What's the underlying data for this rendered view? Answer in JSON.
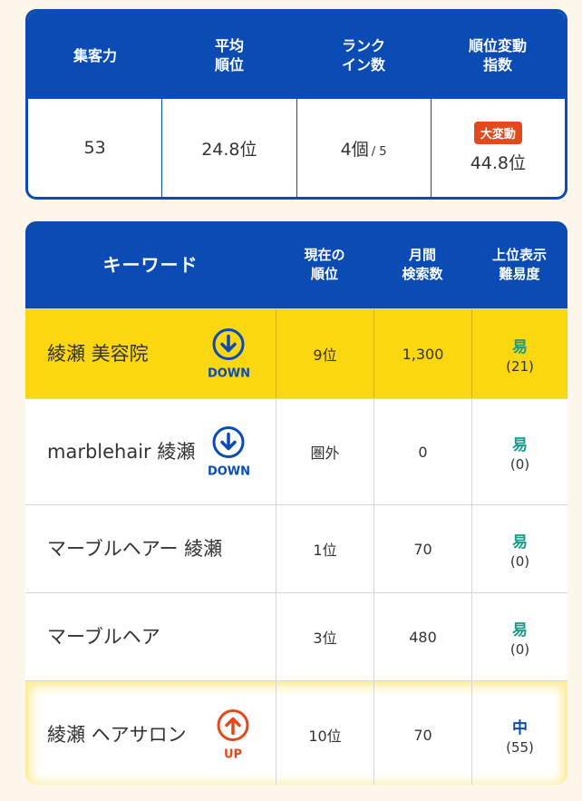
{
  "summary": {
    "headers": [
      "集客力",
      "平均\n順位",
      "ランク\nイン数",
      "順位変動\n指数"
    ],
    "attract": "53",
    "avg_rank": "24.8位",
    "rank_in": "4個",
    "rank_in_total": "/ 5",
    "volatility_badge": "大変動",
    "volatility": "44.8位"
  },
  "table": {
    "headers": {
      "keyword": "キーワード",
      "current_rank": "現在の\n順位",
      "monthly_volume": "月間\n検索数",
      "difficulty": "上位表示\n難易度"
    },
    "rows": [
      {
        "keyword": "綾瀬 美容院",
        "trend": "DOWN",
        "rank": "9位",
        "volume": "1,300",
        "difficulty": "易",
        "difficulty_score": "(21)"
      },
      {
        "keyword": "marblehair 綾瀬",
        "trend": "DOWN",
        "rank": "圏外",
        "volume": "0",
        "difficulty": "易",
        "difficulty_score": "(0)"
      },
      {
        "keyword": "マーブルヘアー 綾瀬",
        "trend": "",
        "rank": "1位",
        "volume": "70",
        "difficulty": "易",
        "difficulty_score": "(0)"
      },
      {
        "keyword": "マーブルヘア",
        "trend": "",
        "rank": "3位",
        "volume": "480",
        "difficulty": "易",
        "difficulty_score": "(0)"
      },
      {
        "keyword": "綾瀬 ヘアサロン",
        "trend": "UP",
        "rank": "10位",
        "volume": "70",
        "difficulty": "中",
        "difficulty_score": "(55)"
      }
    ]
  },
  "colors": {
    "primary": "#0a4cb3",
    "highlight": "#fbd70f",
    "badge": "#e24a1b",
    "easy": "#1a9a8a"
  }
}
